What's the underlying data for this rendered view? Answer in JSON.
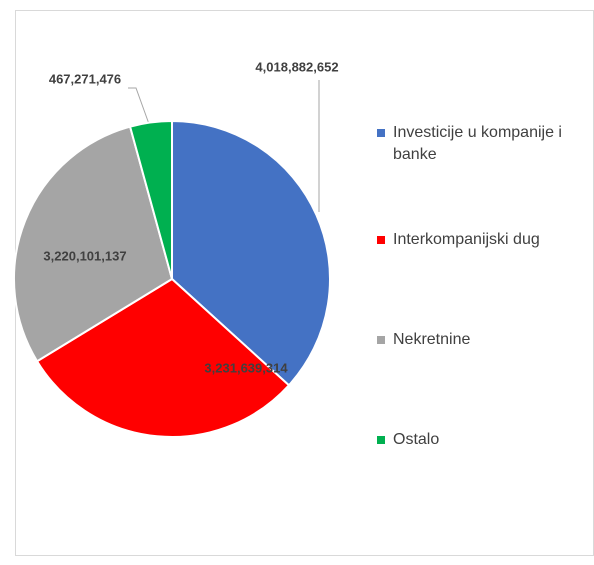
{
  "chart_data": {
    "type": "pie",
    "categories": [
      "Investicije u kompanije i banke",
      "Interkompanijski dug",
      "Nekretnine",
      "Ostalo"
    ],
    "values": [
      4018882652,
      3231639314,
      3220101137,
      467271476
    ],
    "value_labels": [
      "4,018,882,652",
      "3,231,639,314",
      "3,220,101,137",
      "467,271,476"
    ],
    "colors": [
      "#4472c4",
      "#ff0000",
      "#a5a5a5",
      "#00b050"
    ],
    "legend": "right"
  }
}
